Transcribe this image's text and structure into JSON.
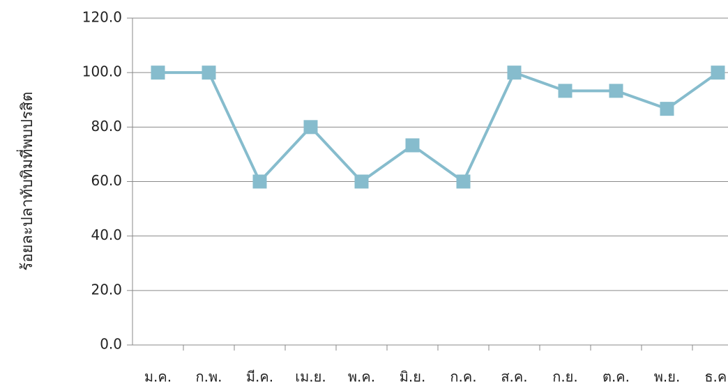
{
  "chart_data": {
    "type": "line",
    "y_label": "ร้อยละปลาทับทิมที่พบปรสิต",
    "categories": [
      "ม.ค.",
      "ก.พ.",
      "มี.ค.",
      "เม.ย.",
      "พ.ค.",
      "มิ.ย.",
      "ก.ค.",
      "ส.ค.",
      "ก.ย.",
      "ต.ค.",
      "พ.ย.",
      "ธ.ค."
    ],
    "series": [
      {
        "name": "ร้อยละปลาทับทิมที่พบปรสิต",
        "color": "#86bccd",
        "values": [
          100,
          100,
          60,
          80,
          60,
          73.3,
          60,
          100,
          93.3,
          93.3,
          86.7,
          100
        ]
      }
    ],
    "ylim": [
      0,
      120
    ],
    "yticks": [
      {
        "value": 0,
        "label": "0.0"
      },
      {
        "value": 20,
        "label": "20.0"
      },
      {
        "value": 40,
        "label": "40.0"
      },
      {
        "value": 60,
        "label": "60.0"
      },
      {
        "value": 80,
        "label": "80.0"
      },
      {
        "value": 100,
        "label": "100.0"
      },
      {
        "value": 120,
        "label": "120.0"
      }
    ],
    "grid": true
  }
}
